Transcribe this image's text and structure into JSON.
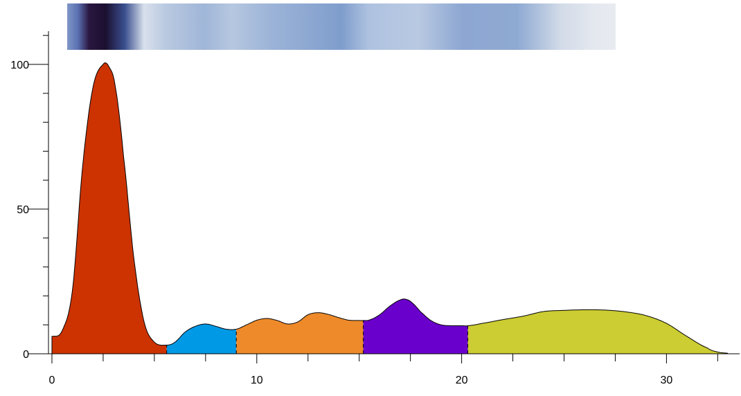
{
  "chart_data": {
    "type": "area",
    "title": "",
    "xlabel": "",
    "ylabel": "",
    "xlim": [
      -0.2,
      33.5
    ],
    "ylim": [
      0,
      110
    ],
    "x_ticks": [
      {
        "value": 0,
        "label": "0"
      },
      {
        "value": 10,
        "label": "10"
      },
      {
        "value": 20,
        "label": "20"
      },
      {
        "value": 30,
        "label": "30"
      }
    ],
    "x_minor_ticks": [
      2.5,
      5,
      7.5,
      12.5,
      15,
      17.5,
      22.5,
      25,
      27.5,
      32.5
    ],
    "y_ticks": [
      {
        "value": 0,
        "label": "0"
      },
      {
        "value": 50,
        "label": "50"
      },
      {
        "value": 100,
        "label": "100"
      }
    ],
    "y_minor_ticks": [
      10,
      20,
      30,
      40,
      60,
      70,
      80,
      90,
      110
    ],
    "profile": {
      "x": [
        0,
        0.5,
        1,
        1.5,
        2,
        2.5,
        2.8,
        3.1,
        3.5,
        4,
        4.5,
        5,
        5.6,
        6,
        6.5,
        7,
        7.5,
        8,
        8.5,
        9,
        9.5,
        10,
        10.5,
        11,
        11.5,
        12,
        12.5,
        13,
        13.5,
        14,
        14.5,
        15,
        15.2,
        15.5,
        16,
        16.5,
        17,
        17.3,
        17.6,
        18,
        18.5,
        19,
        19.5,
        20,
        20.3,
        21,
        22,
        23,
        24,
        25,
        26,
        27,
        28,
        29,
        30,
        31,
        32,
        32.5,
        33
      ],
      "y": [
        6,
        8,
        22,
        65,
        92,
        100,
        99,
        92,
        68,
        33,
        11,
        4,
        3,
        4,
        7.5,
        9.5,
        10.3,
        9.5,
        8.5,
        8.5,
        10,
        11.6,
        12.2,
        11.5,
        10.3,
        11,
        13.5,
        14.2,
        13.6,
        12.5,
        11.6,
        11.5,
        11.5,
        11.7,
        13.5,
        16.5,
        18.6,
        18.8,
        17.5,
        14.5,
        11.5,
        10,
        9.7,
        9.7,
        9.7,
        10.5,
        11.8,
        13,
        14.6,
        15,
        15.2,
        15.1,
        14.5,
        13.2,
        10.5,
        6,
        2,
        0.6,
        0.2
      ]
    },
    "series": [
      {
        "from": 0,
        "to": 5.6,
        "color": "#cc3300"
      },
      {
        "from": 5.6,
        "to": 9.0,
        "color": "#0099e6"
      },
      {
        "from": 9.0,
        "to": 15.2,
        "color": "#ee8a2a"
      },
      {
        "from": 15.2,
        "to": 20.3,
        "color": "#6a00cc"
      },
      {
        "from": 20.3,
        "to": 33.0,
        "color": "#cccc33"
      }
    ],
    "gel_lane": {
      "x_start": 0.8,
      "x_end": 27.6,
      "colors": [
        "#e6eaf2",
        "#2a1640",
        "#e8edf4",
        "#8fa8d0"
      ]
    }
  }
}
